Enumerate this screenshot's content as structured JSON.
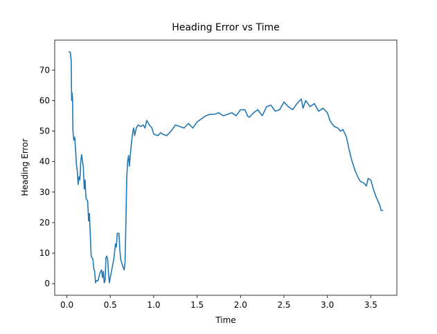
{
  "chart_data": {
    "type": "line",
    "title": "Heading Error vs Time",
    "xlabel": "Time",
    "ylabel": "Heading Error",
    "xlim": [
      -0.14,
      3.8
    ],
    "ylim": [
      -3.8,
      79.8
    ],
    "xticks": [
      {
        "value": 0,
        "label": "0.0"
      },
      {
        "value": 0.5,
        "label": "0.5"
      },
      {
        "value": 1,
        "label": "1.0"
      },
      {
        "value": 1.5,
        "label": "1.5"
      },
      {
        "value": 2,
        "label": "2.0"
      },
      {
        "value": 2.5,
        "label": "2.5"
      },
      {
        "value": 3,
        "label": "3.0"
      },
      {
        "value": 3.5,
        "label": "3.5"
      }
    ],
    "yticks": [
      0,
      10,
      20,
      30,
      40,
      50,
      60,
      70
    ],
    "series": [
      {
        "color": "#1f77b4",
        "x": [
          0.02,
          0.04,
          0.05,
          0.055,
          0.06,
          0.065,
          0.07,
          0.08,
          0.09,
          0.1,
          0.11,
          0.12,
          0.13,
          0.14,
          0.15,
          0.16,
          0.17,
          0.18,
          0.19,
          0.2,
          0.21,
          0.22,
          0.24,
          0.25,
          0.26,
          0.27,
          0.28,
          0.29,
          0.3,
          0.31,
          0.32,
          0.33,
          0.34,
          0.36,
          0.38,
          0.4,
          0.41,
          0.42,
          0.43,
          0.44,
          0.45,
          0.46,
          0.47,
          0.48,
          0.49,
          0.5,
          0.52,
          0.54,
          0.56,
          0.57,
          0.58,
          0.6,
          0.61,
          0.62,
          0.64,
          0.66,
          0.67,
          0.68,
          0.69,
          0.7,
          0.71,
          0.72,
          0.73,
          0.74,
          0.76,
          0.77,
          0.78,
          0.8,
          0.82,
          0.85,
          0.88,
          0.9,
          0.92,
          0.95,
          0.98,
          1.0,
          1.05,
          1.08,
          1.1,
          1.15,
          1.2,
          1.25,
          1.3,
          1.35,
          1.4,
          1.45,
          1.5,
          1.55,
          1.6,
          1.65,
          1.7,
          1.75,
          1.8,
          1.85,
          1.9,
          1.95,
          2.0,
          2.05,
          2.08,
          2.1,
          2.15,
          2.2,
          2.25,
          2.3,
          2.35,
          2.4,
          2.45,
          2.5,
          2.55,
          2.6,
          2.65,
          2.7,
          2.72,
          2.75,
          2.8,
          2.85,
          2.9,
          2.95,
          3.0,
          3.03,
          3.05,
          3.08,
          3.12,
          3.15,
          3.18,
          3.22,
          3.25,
          3.28,
          3.32,
          3.35,
          3.38,
          3.42,
          3.45,
          3.47,
          3.5,
          3.53,
          3.56,
          3.6,
          3.62,
          3.64
        ],
        "values": [
          76,
          75.8,
          73,
          60,
          62.5,
          61,
          50,
          47,
          48,
          44,
          39,
          37,
          32.5,
          35,
          34,
          40,
          42.3,
          40,
          38,
          31,
          34,
          28,
          27,
          20.5,
          23,
          16,
          9,
          8.5,
          8,
          5,
          4,
          0.3,
          1,
          1,
          3.5,
          4.5,
          2,
          4,
          0.3,
          1,
          8.5,
          9,
          8,
          3,
          0.3,
          2,
          5,
          8,
          13,
          12,
          16.5,
          16.5,
          11,
          8,
          6,
          4.5,
          7,
          20,
          35,
          40,
          42,
          38.5,
          42,
          45,
          50,
          51,
          48.5,
          51,
          52,
          51.5,
          52,
          51,
          53.5,
          52,
          51,
          49,
          48.5,
          49.5,
          49,
          48.5,
          50,
          52,
          51.5,
          51,
          52.5,
          51,
          53,
          54,
          55,
          55.5,
          55.5,
          56,
          55,
          55.5,
          56,
          55,
          57,
          57,
          55,
          54.5,
          56,
          57,
          55,
          58,
          58.5,
          56.5,
          57,
          59.5,
          58,
          57,
          59,
          60.5,
          57.5,
          60,
          58,
          59,
          56.5,
          57.5,
          56,
          53.5,
          52.5,
          51.5,
          51,
          50,
          50.5,
          48,
          44,
          40.5,
          37,
          35,
          33.5,
          33,
          32,
          34.5,
          34,
          31,
          28.5,
          26,
          24,
          24
        ]
      }
    ]
  }
}
